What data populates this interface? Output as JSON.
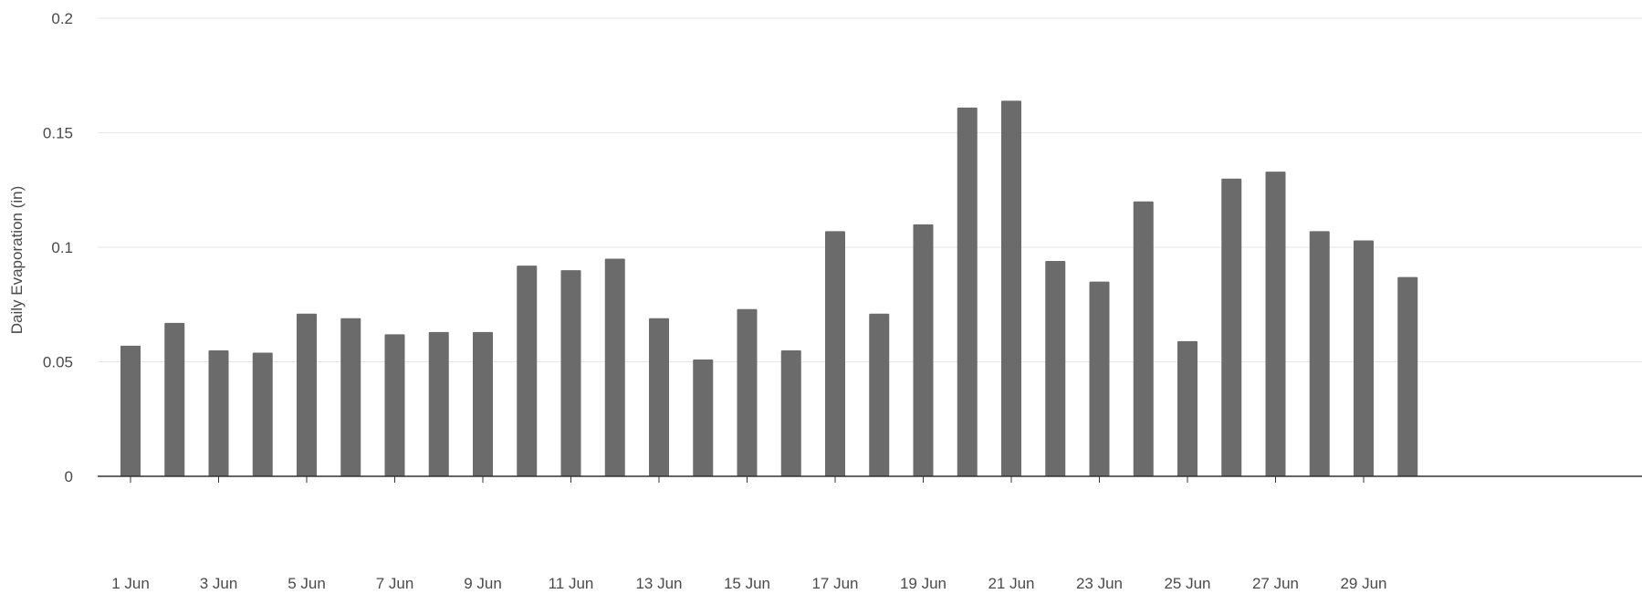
{
  "chart_data": {
    "type": "bar",
    "title": "",
    "xlabel": "",
    "ylabel": "Daily Evaporation (in)",
    "ylim": [
      0,
      0.2
    ],
    "y_ticks": [
      {
        "value": 0,
        "label": "0"
      },
      {
        "value": 0.05,
        "label": "0.05"
      },
      {
        "value": 0.1,
        "label": "0.1"
      },
      {
        "value": 0.15,
        "label": "0.15"
      },
      {
        "value": 0.2,
        "label": "0.2"
      }
    ],
    "x_tick_labels": [
      "1 Jun",
      "3 Jun",
      "5 Jun",
      "7 Jun",
      "9 Jun",
      "11 Jun",
      "13 Jun",
      "15 Jun",
      "17 Jun",
      "19 Jun",
      "21 Jun",
      "23 Jun",
      "25 Jun",
      "27 Jun",
      "29 Jun"
    ],
    "x_tick_every": 2,
    "categories": [
      "1 Jun",
      "2 Jun",
      "3 Jun",
      "4 Jun",
      "5 Jun",
      "6 Jun",
      "7 Jun",
      "8 Jun",
      "9 Jun",
      "10 Jun",
      "11 Jun",
      "12 Jun",
      "13 Jun",
      "14 Jun",
      "15 Jun",
      "16 Jun",
      "17 Jun",
      "18 Jun",
      "19 Jun",
      "20 Jun",
      "21 Jun",
      "22 Jun",
      "23 Jun",
      "24 Jun",
      "25 Jun",
      "26 Jun",
      "27 Jun",
      "28 Jun",
      "29 Jun",
      "30 Jun"
    ],
    "values": [
      0.057,
      0.067,
      0.055,
      0.054,
      0.071,
      0.069,
      0.062,
      0.063,
      0.063,
      0.092,
      0.09,
      0.095,
      0.069,
      0.051,
      0.073,
      0.055,
      0.107,
      0.071,
      0.11,
      0.161,
      0.164,
      0.094,
      0.085,
      0.12,
      0.059,
      0.13,
      0.133,
      0.107,
      0.103,
      0.087
    ],
    "bar_color": "#6b6b6b",
    "grid": true,
    "grid_color": "#e6e6e6",
    "axis_color": "#333333",
    "legend": "none"
  }
}
